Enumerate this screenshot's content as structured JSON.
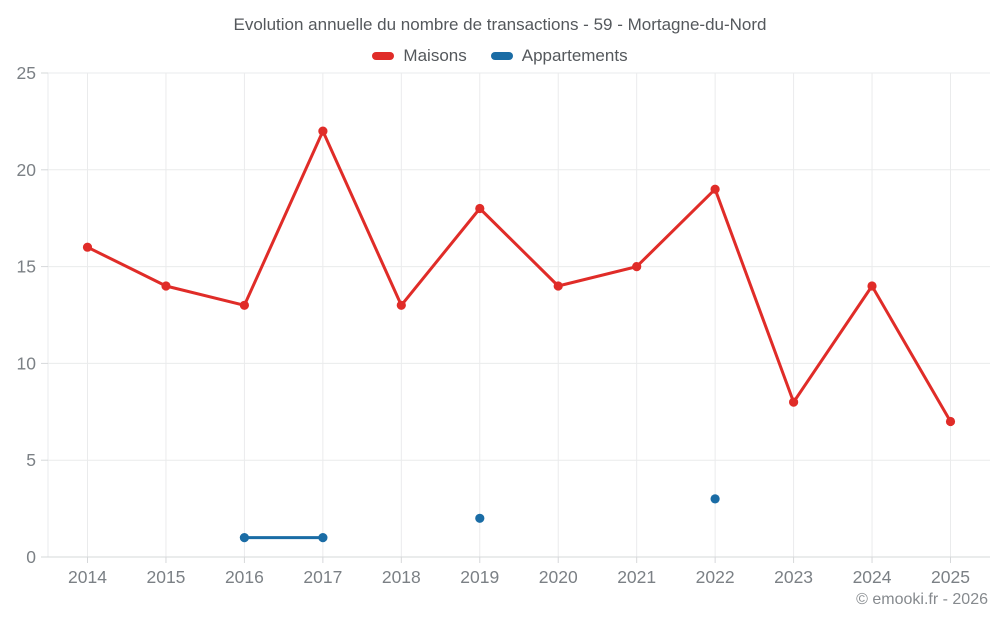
{
  "header": {
    "title": "Evolution annuelle du nombre de transactions - 59 - Mortagne-du-Nord"
  },
  "legend": {
    "items": [
      {
        "label": "Maisons",
        "color": "#e02c28"
      },
      {
        "label": "Appartements",
        "color": "#1a6ca5"
      }
    ]
  },
  "footer": {
    "text": "© emooki.fr - 2026"
  },
  "colors": {
    "maisons": "#e02c28",
    "appartements": "#1a6ca5",
    "gridline": "#eaebec",
    "axis_tick": "#d6d8da",
    "axis_label": "#7b8085"
  },
  "chart_data": {
    "type": "line",
    "title": "Evolution annuelle du nombre de transactions - 59 - Mortagne-du-Nord",
    "categories": [
      "2014",
      "2015",
      "2016",
      "2017",
      "2018",
      "2019",
      "2020",
      "2021",
      "2022",
      "2023",
      "2024",
      "2025"
    ],
    "series": [
      {
        "name": "Maisons",
        "color": "#e02c28",
        "values": [
          16,
          14,
          13,
          22,
          13,
          18,
          14,
          15,
          19,
          8,
          14,
          7
        ]
      },
      {
        "name": "Appartements",
        "color": "#1a6ca5",
        "values": [
          null,
          null,
          1,
          1,
          null,
          2,
          null,
          null,
          3,
          null,
          null,
          null
        ]
      }
    ],
    "xlabel": "",
    "ylabel": "",
    "ylim": [
      0,
      25
    ],
    "yticks": [
      0,
      5,
      10,
      15,
      20,
      25
    ],
    "grid": true,
    "legend_position": "top",
    "point_radius": 4.6,
    "line_width": 3
  }
}
